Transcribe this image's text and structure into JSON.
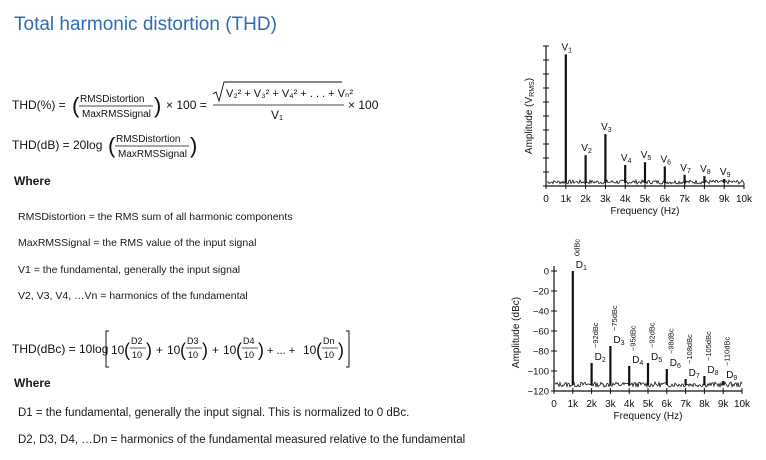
{
  "title": "Total harmonic distortion (THD)",
  "formulas": {
    "thd_pct": {
      "lhs": "THD(%) =",
      "frac1_num": "RMSDistortion",
      "frac1_den": "MaxRMSSignal",
      "times100": "× 100 =",
      "sqrt_terms": "V₂² + V₃² + V₄² + . . . + Vₙ²",
      "sqrt_den": "V₁",
      "times100_end": "× 100"
    },
    "thd_db": {
      "lhs": "THD(dB) = 20log",
      "num": "RMSDistortion",
      "den": "MaxRMSSignal"
    },
    "thd_dbc": {
      "lhs": "THD(dBc) = 10log",
      "t1": "D2",
      "t2": "D3",
      "t3": "D4",
      "tn": "Dn",
      "ten": "10",
      "dots": "+ ... +"
    }
  },
  "where1": "Where",
  "defs1": [
    "RMSDistortion = the RMS sum of all harmonic components",
    "MaxRMSSignal = the RMS value of the input signal",
    "V1 = the fundamental, generally the input signal",
    "V2, V3, V4, …Vn = harmonics of the fundamental"
  ],
  "where2": "Where",
  "defs2": [
    "D1 = the fundamental, generally the input signal. This is normalized to 0 dBc.",
    "D2, D3, D4, …Dn = harmonics of the fundamental measured relative to the fundamental"
  ],
  "chart_data": [
    {
      "type": "bar",
      "ylabel": "Amplitude (V",
      "ylabel_sub": "RMS",
      "ylabel_end": ")",
      "xlabel": "Frequency (Hz)",
      "x_ticks": [
        "0",
        "1k",
        "2k",
        "3k",
        "4k",
        "5k",
        "6k",
        "7k",
        "8k",
        "9k",
        "10k"
      ],
      "xlim": [
        0,
        10000
      ],
      "ylim": [
        0,
        1.0
      ],
      "labels": [
        "V1",
        "V2",
        "V3",
        "V4",
        "V5",
        "V6",
        "V7",
        "V8",
        "V9"
      ],
      "x": [
        1000,
        2000,
        3000,
        4000,
        5000,
        6000,
        7000,
        8000,
        9000
      ],
      "values": [
        0.94,
        0.22,
        0.37,
        0.15,
        0.17,
        0.14,
        0.08,
        0.07,
        0.05
      ],
      "grid": false
    },
    {
      "type": "bar",
      "ylabel": "Amplitude (dBc)",
      "xlabel": "Frequency (Hz)",
      "x_ticks": [
        "0",
        "1k",
        "2k",
        "3k",
        "4k",
        "5k",
        "6k",
        "7k",
        "8k",
        "9k",
        "10k"
      ],
      "y_ticks": [
        "0",
        "−20",
        "−40",
        "−60",
        "−80",
        "−100",
        "−120"
      ],
      "xlim": [
        0,
        10000
      ],
      "ylim": [
        -120,
        5
      ],
      "labels": [
        "D1",
        "D2",
        "D3",
        "D4",
        "D5",
        "D6",
        "D7",
        "D8",
        "D9"
      ],
      "annotations": [
        "0dBc",
        "−92dBc",
        "−75dBc",
        "−95dBc",
        "−92dBc",
        "−98dBc",
        "−108dBc",
        "−105dBc",
        "−110dBc"
      ],
      "x": [
        1000,
        2000,
        3000,
        4000,
        5000,
        6000,
        7000,
        8000,
        9000
      ],
      "values": [
        0,
        -92,
        -75,
        -95,
        -92,
        -98,
        -108,
        -105,
        -110
      ],
      "grid": false
    }
  ]
}
